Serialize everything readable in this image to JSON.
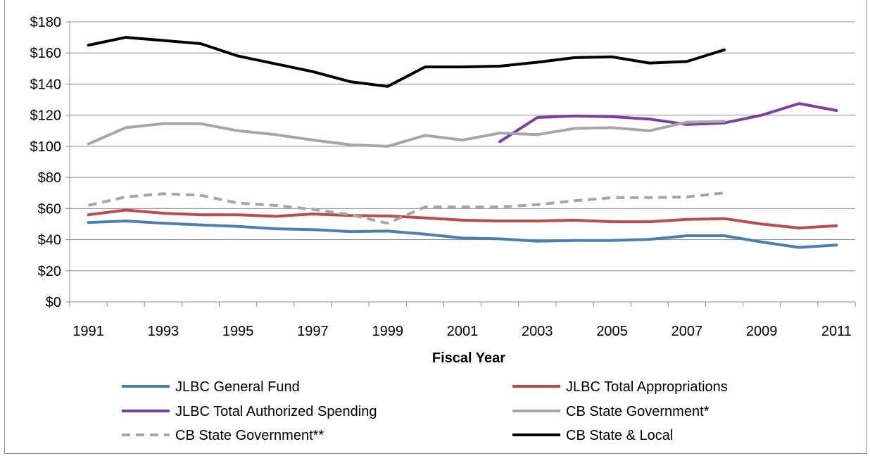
{
  "chart_data": {
    "type": "line",
    "xlabel": "Fiscal Year",
    "ylabel": "",
    "xlim": [
      1991,
      2011
    ],
    "ylim": [
      0,
      180
    ],
    "x_ticks": [
      1991,
      1993,
      1995,
      1997,
      1999,
      2001,
      2003,
      2005,
      2007,
      2009,
      2011
    ],
    "y_ticks": [
      0,
      20,
      40,
      60,
      80,
      100,
      120,
      140,
      160,
      180
    ],
    "y_tick_labels": [
      "$0",
      "$20",
      "$40",
      "$60",
      "$80",
      "$100",
      "$120",
      "$140",
      "$160",
      "$180"
    ],
    "grid": "horizontal",
    "legend_position": "bottom",
    "series": [
      {
        "name": "JLBC General Fund",
        "color": "#4a7ebb",
        "dash": false,
        "x": [
          1991,
          1992,
          1993,
          1994,
          1995,
          1996,
          1997,
          1998,
          1999,
          2000,
          2001,
          2002,
          2003,
          2004,
          2005,
          2006,
          2007,
          2008,
          2009,
          2010,
          2011
        ],
        "values": [
          51,
          52,
          50.5,
          49.5,
          48.5,
          47,
          46.5,
          45.2,
          45.5,
          43.5,
          41,
          40.5,
          39,
          39.5,
          39.5,
          40.2,
          42.5,
          42.5,
          38.5,
          35,
          36.5
        ]
      },
      {
        "name": "JLBC Total Appropriations",
        "color": "#be4b48",
        "dash": false,
        "x": [
          1991,
          1992,
          1993,
          1994,
          1995,
          1996,
          1997,
          1998,
          1999,
          2000,
          2001,
          2002,
          2003,
          2004,
          2005,
          2006,
          2007,
          2008,
          2009,
          2010,
          2011
        ],
        "values": [
          56,
          59,
          57,
          56,
          56,
          55,
          56.5,
          55.5,
          55.2,
          54,
          52.5,
          52,
          52,
          52.5,
          51.5,
          51.5,
          53,
          53.5,
          50,
          47.5,
          49
        ]
      },
      {
        "name": "JLBC Total Authorized Spending",
        "color": "#7d3fa6",
        "dash": false,
        "x": [
          2002,
          2003,
          2004,
          2005,
          2006,
          2007,
          2008,
          2009,
          2010,
          2011
        ],
        "values": [
          103,
          118.5,
          119.5,
          119,
          117.5,
          114,
          115,
          120,
          127.5,
          123
        ]
      },
      {
        "name": "CB State Government*",
        "color": "#a6a6a6",
        "dash": false,
        "x": [
          1991,
          1992,
          1993,
          1994,
          1995,
          1996,
          1997,
          1998,
          1999,
          2000,
          2001,
          2002,
          2003,
          2004,
          2005,
          2006,
          2007,
          2008
        ],
        "values": [
          101.5,
          112,
          114.5,
          114.5,
          110,
          107.5,
          104,
          101,
          100,
          107,
          104,
          108.5,
          107.5,
          111.5,
          112,
          110,
          115.5,
          116
        ]
      },
      {
        "name": "CB State Government**",
        "color": "#a6a6a6",
        "dash": true,
        "x": [
          1991,
          1992,
          1993,
          1994,
          1995,
          1996,
          1997,
          1998,
          1999,
          2000,
          2001,
          2002,
          2003,
          2004,
          2005,
          2006,
          2007,
          2008
        ],
        "values": [
          62,
          67.5,
          69.5,
          68.5,
          63.5,
          62,
          59.5,
          56,
          50.5,
          61,
          61,
          61,
          62.5,
          65,
          67,
          67,
          67.5,
          70
        ]
      },
      {
        "name": "CB State & Local",
        "color": "#000000",
        "dash": false,
        "x": [
          1991,
          1992,
          1993,
          1994,
          1995,
          1996,
          1997,
          1998,
          1999,
          2000,
          2001,
          2002,
          2003,
          2004,
          2005,
          2006,
          2007,
          2008
        ],
        "values": [
          165,
          170,
          168,
          166,
          158,
          153,
          148,
          141.5,
          138.5,
          151,
          151,
          151.5,
          154,
          157,
          157.5,
          153.5,
          154.5,
          162
        ]
      }
    ]
  }
}
